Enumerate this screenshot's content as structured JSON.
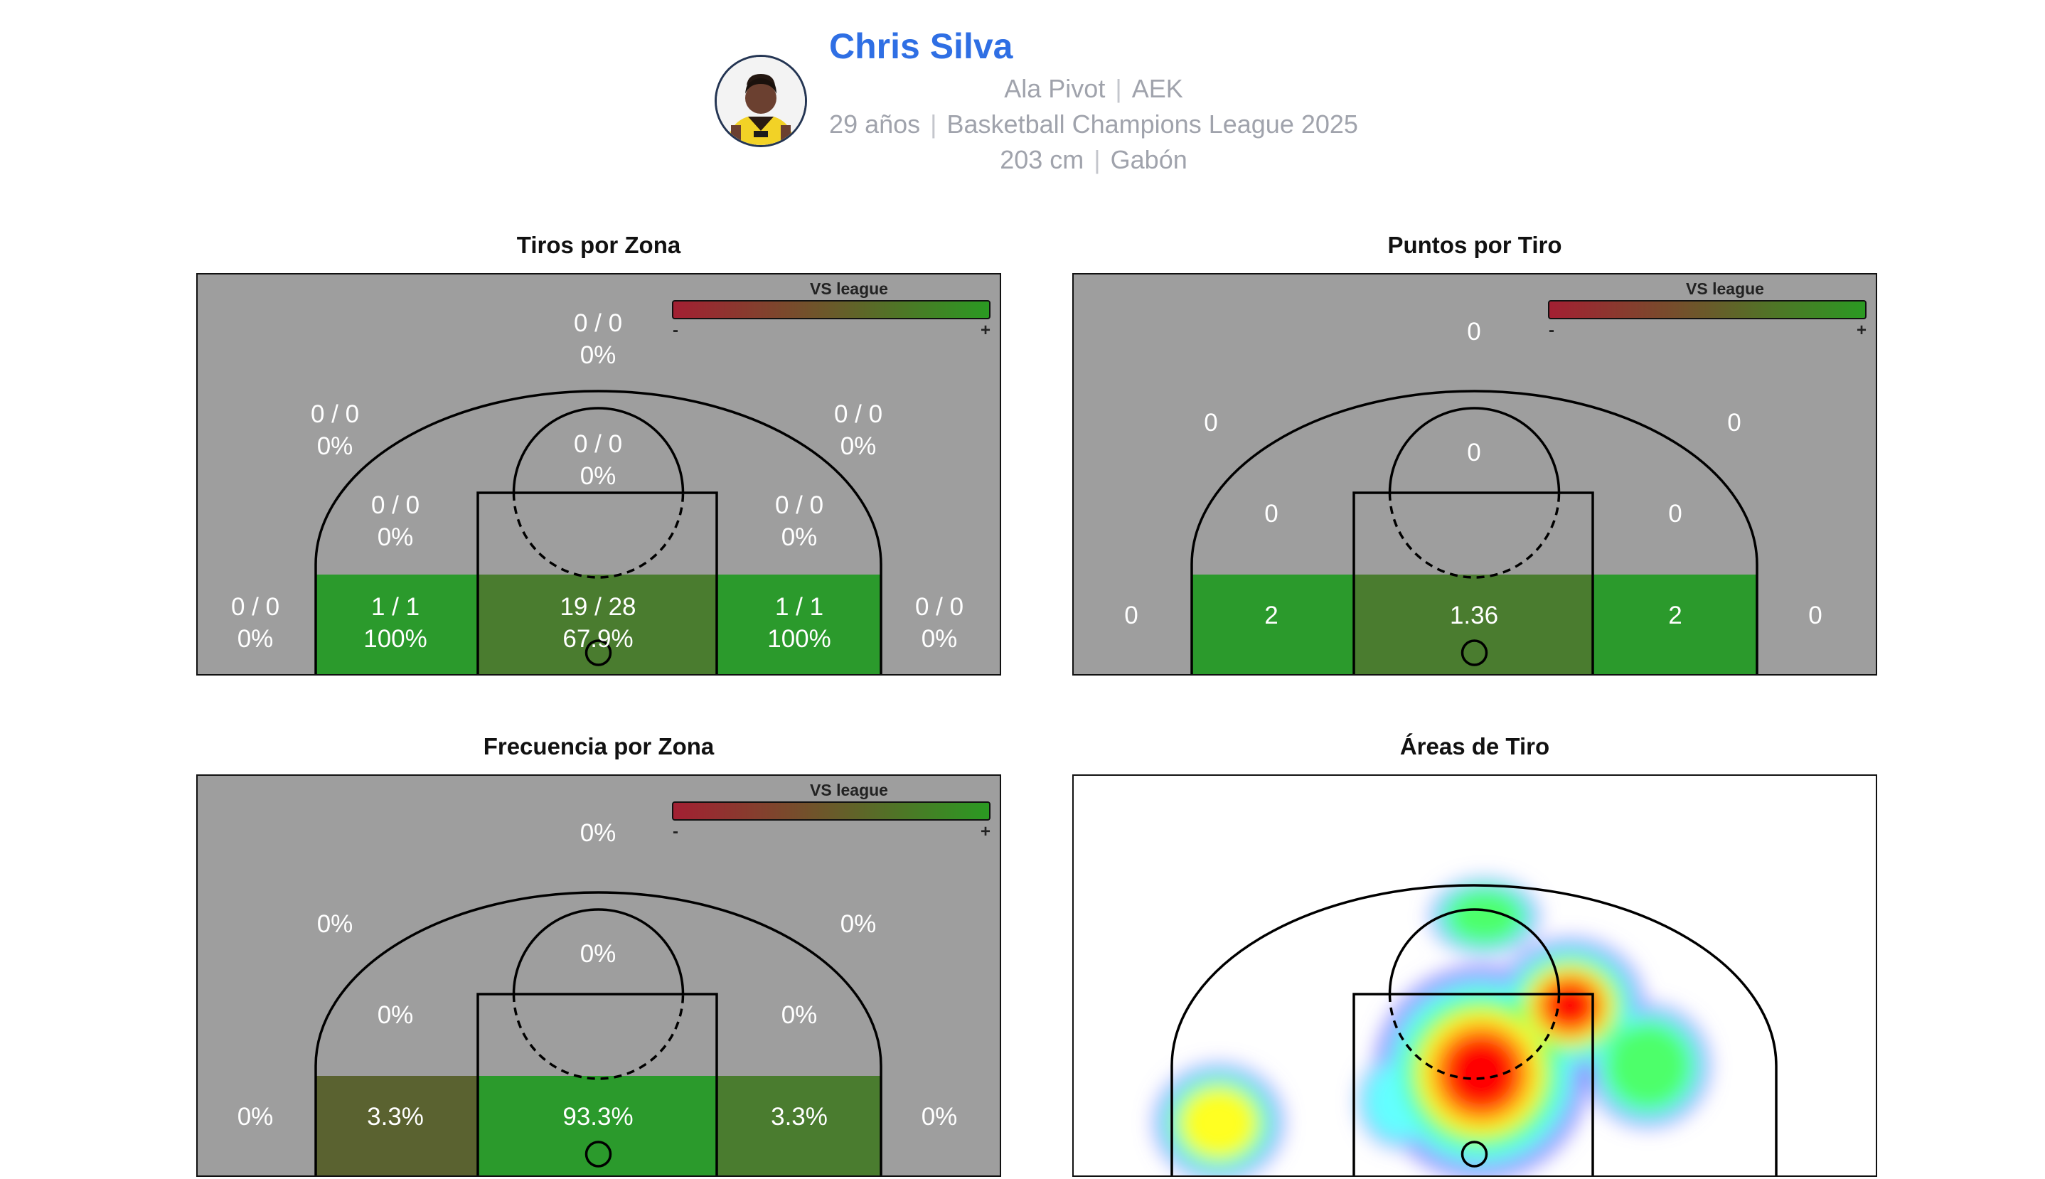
{
  "player": {
    "name": "Chris Silva",
    "position": "Ala Pivot",
    "team": "AEK",
    "age": "29 años",
    "competition": "Basketball Champions League 2025",
    "height": "203 cm",
    "country": "Gabón",
    "separator": "|"
  },
  "legend": {
    "title": "VS league",
    "minus": "-",
    "plus": "+"
  },
  "colors": {
    "court_bg": "#9e9e9e",
    "above": "#2b9a2c",
    "near": "#4a7c2f",
    "below": "#5a6230",
    "lines": "#000000",
    "label": "#ffffff",
    "title_accent": "#2f6fe4"
  },
  "chart_data": [
    {
      "type": "heatmap",
      "title": "Tiros por Zona",
      "zones": [
        {
          "zone": "deep-three",
          "made": 0,
          "attempts": 0,
          "label": "0 / 0",
          "pct_label": "0%",
          "vs_league": null
        },
        {
          "zone": "three-left-wing",
          "made": 0,
          "attempts": 0,
          "label": "0 / 0",
          "pct_label": "0%",
          "vs_league": null
        },
        {
          "zone": "three-right-wing",
          "made": 0,
          "attempts": 0,
          "label": "0 / 0",
          "pct_label": "0%",
          "vs_league": null
        },
        {
          "zone": "mid-top",
          "made": 0,
          "attempts": 0,
          "label": "0 / 0",
          "pct_label": "0%",
          "vs_league": null
        },
        {
          "zone": "mid-left",
          "made": 0,
          "attempts": 0,
          "label": "0 / 0",
          "pct_label": "0%",
          "vs_league": null
        },
        {
          "zone": "mid-right",
          "made": 0,
          "attempts": 0,
          "label": "0 / 0",
          "pct_label": "0%",
          "vs_league": null
        },
        {
          "zone": "corner-three-left",
          "made": 0,
          "attempts": 0,
          "label": "0 / 0",
          "pct_label": "0%",
          "vs_league": null
        },
        {
          "zone": "baseline-left",
          "made": 1,
          "attempts": 1,
          "label": "1 / 1",
          "pct_label": "100%",
          "vs_league": "above"
        },
        {
          "zone": "paint",
          "made": 19,
          "attempts": 28,
          "label": "19 / 28",
          "pct_label": "67.9%",
          "vs_league": "near"
        },
        {
          "zone": "baseline-right",
          "made": 1,
          "attempts": 1,
          "label": "1 / 1",
          "pct_label": "100%",
          "vs_league": "above"
        },
        {
          "zone": "corner-three-right",
          "made": 0,
          "attempts": 0,
          "label": "0 / 0",
          "pct_label": "0%",
          "vs_league": null
        }
      ]
    },
    {
      "type": "heatmap",
      "title": "Puntos por Tiro",
      "zones": [
        {
          "zone": "deep-three",
          "value": 0,
          "label": "0",
          "vs_league": null
        },
        {
          "zone": "three-left-wing",
          "value": 0,
          "label": "0",
          "vs_league": null
        },
        {
          "zone": "three-right-wing",
          "value": 0,
          "label": "0",
          "vs_league": null
        },
        {
          "zone": "mid-top",
          "value": 0,
          "label": "0",
          "vs_league": null
        },
        {
          "zone": "mid-left",
          "value": 0,
          "label": "0",
          "vs_league": null
        },
        {
          "zone": "mid-right",
          "value": 0,
          "label": "0",
          "vs_league": null
        },
        {
          "zone": "corner-three-left",
          "value": 0,
          "label": "0",
          "vs_league": null
        },
        {
          "zone": "baseline-left",
          "value": 2,
          "label": "2",
          "vs_league": "above"
        },
        {
          "zone": "paint",
          "value": 1.36,
          "label": "1.36",
          "vs_league": "near"
        },
        {
          "zone": "baseline-right",
          "value": 2,
          "label": "2",
          "vs_league": "above"
        },
        {
          "zone": "corner-three-right",
          "value": 0,
          "label": "0",
          "vs_league": null
        }
      ]
    },
    {
      "type": "heatmap",
      "title": "Frecuencia por Zona",
      "zones": [
        {
          "zone": "deep-three",
          "value": 0,
          "label": "0%",
          "vs_league": null
        },
        {
          "zone": "three-left-wing",
          "value": 0,
          "label": "0%",
          "vs_league": null
        },
        {
          "zone": "three-right-wing",
          "value": 0,
          "label": "0%",
          "vs_league": null
        },
        {
          "zone": "mid-top",
          "value": 0,
          "label": "0%",
          "vs_league": null
        },
        {
          "zone": "mid-left",
          "value": 0,
          "label": "0%",
          "vs_league": null
        },
        {
          "zone": "mid-right",
          "value": 0,
          "label": "0%",
          "vs_league": null
        },
        {
          "zone": "corner-three-left",
          "value": 0,
          "label": "0%",
          "vs_league": null
        },
        {
          "zone": "baseline-left",
          "value": 3.3,
          "label": "3.3%",
          "vs_league": "below"
        },
        {
          "zone": "paint",
          "value": 93.3,
          "label": "93.3%",
          "vs_league": "above"
        },
        {
          "zone": "baseline-right",
          "value": 3.3,
          "label": "3.3%",
          "vs_league": "near"
        },
        {
          "zone": "corner-three-right",
          "value": 0,
          "label": "0%",
          "vs_league": null
        }
      ]
    },
    {
      "type": "heatmap",
      "title": "Áreas de Tiro",
      "density_blobs": [
        {
          "area": "paint-core",
          "intensity": 1.0
        },
        {
          "area": "paint-right-elbow",
          "intensity": 0.85
        },
        {
          "area": "right-short-corner",
          "intensity": 0.45
        },
        {
          "area": "top-of-key",
          "intensity": 0.4
        },
        {
          "area": "left-short-corner",
          "intensity": 0.3
        },
        {
          "area": "left-corner-three",
          "intensity": 0.55
        }
      ]
    }
  ]
}
